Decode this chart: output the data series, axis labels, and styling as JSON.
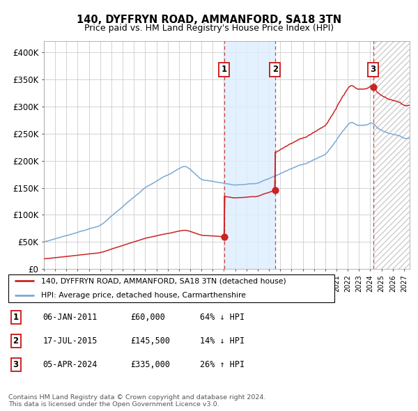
{
  "title": "140, DYFFRYN ROAD, AMMANFORD, SA18 3TN",
  "subtitle": "Price paid vs. HM Land Registry's House Price Index (HPI)",
  "xlim_start": 1995.0,
  "xlim_end": 2027.5,
  "ylim": [
    0,
    420000
  ],
  "yticks": [
    0,
    50000,
    100000,
    150000,
    200000,
    250000,
    300000,
    350000,
    400000
  ],
  "ytick_labels": [
    "£0",
    "£50K",
    "£100K",
    "£150K",
    "£200K",
    "£250K",
    "£300K",
    "£350K",
    "£400K"
  ],
  "hpi_color": "#7aa8d4",
  "price_color": "#cc2222",
  "sale1_date_x": 2011.017,
  "sale1_price": 60000,
  "sale2_date_x": 2015.538,
  "sale2_price": 145500,
  "sale3_date_x": 2024.258,
  "sale3_price": 335000,
  "legend_label_price": "140, DYFFRYN ROAD, AMMANFORD, SA18 3TN (detached house)",
  "legend_label_hpi": "HPI: Average price, detached house, Carmarthenshire",
  "table_rows": [
    [
      "1",
      "06-JAN-2011",
      "£60,000",
      "64% ↓ HPI"
    ],
    [
      "2",
      "17-JUL-2015",
      "£145,500",
      "14% ↓ HPI"
    ],
    [
      "3",
      "05-APR-2024",
      "£335,000",
      "26% ↑ HPI"
    ]
  ],
  "footnote": "Contains HM Land Registry data © Crown copyright and database right 2024.\nThis data is licensed under the Open Government Licence v3.0.",
  "background_color": "#ffffff",
  "grid_color": "#cccccc",
  "shade_color": "#ddeeff",
  "hatch_color": "#cccccc"
}
